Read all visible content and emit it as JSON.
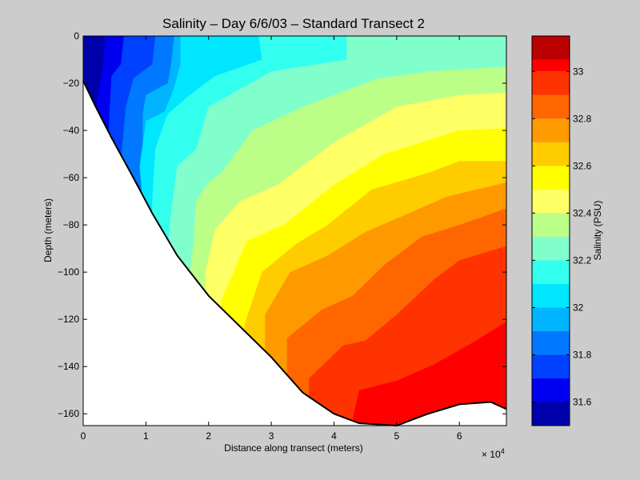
{
  "chart_data": {
    "type": "filled-contour",
    "title": "Salinity – Day 6/6/03 – Standard Transect 2",
    "xlabel": "Distance along transect (meters)",
    "ylabel": "Depth (meters)",
    "x_exponent_label": "× 10",
    "x_exponent": "4",
    "xlim": [
      0,
      67500
    ],
    "ylim": [
      -165,
      0
    ],
    "xticks": [
      {
        "value": 0,
        "label": "0"
      },
      {
        "value": 10000,
        "label": "1"
      },
      {
        "value": 20000,
        "label": "2"
      },
      {
        "value": 30000,
        "label": "3"
      },
      {
        "value": 40000,
        "label": "4"
      },
      {
        "value": 50000,
        "label": "5"
      },
      {
        "value": 60000,
        "label": "6"
      }
    ],
    "yticks": [
      {
        "value": 0,
        "label": "0"
      },
      {
        "value": -20,
        "label": "−20"
      },
      {
        "value": -40,
        "label": "−40"
      },
      {
        "value": -60,
        "label": "−60"
      },
      {
        "value": -80,
        "label": "−80"
      },
      {
        "value": -100,
        "label": "−100"
      },
      {
        "value": -120,
        "label": "−120"
      },
      {
        "value": -140,
        "label": "−140"
      },
      {
        "value": -160,
        "label": "−160"
      }
    ],
    "bottom_profile": [
      [
        0,
        -19
      ],
      [
        2000,
        -30
      ],
      [
        4500,
        -43
      ],
      [
        8000,
        -60
      ],
      [
        11000,
        -75
      ],
      [
        15000,
        -93
      ],
      [
        20000,
        -110
      ],
      [
        25000,
        -123
      ],
      [
        30000,
        -136
      ],
      [
        35000,
        -151
      ],
      [
        40000,
        -160
      ],
      [
        44000,
        -164
      ],
      [
        50000,
        -165
      ],
      [
        55000,
        -160
      ],
      [
        60000,
        -156
      ],
      [
        65000,
        -155
      ],
      [
        67500,
        -158
      ]
    ],
    "colorbar": {
      "label": "Salinity (PSU)",
      "range": [
        31.5,
        33.15
      ],
      "levels": [
        31.5,
        31.6,
        31.7,
        31.8,
        31.9,
        32.0,
        32.1,
        32.2,
        32.3,
        32.4,
        32.5,
        32.6,
        32.7,
        32.8,
        32.9,
        33.0,
        33.05,
        33.15
      ],
      "colors": [
        "#0000aa",
        "#0000f0",
        "#0040ff",
        "#0078ff",
        "#00b4ff",
        "#00e6ff",
        "#33ffee",
        "#80ffcc",
        "#bbff88",
        "#ffff66",
        "#ffff00",
        "#ffcc00",
        "#ff9900",
        "#ff6600",
        "#ff3300",
        "#ff0000",
        "#bb0000"
      ],
      "ticks": [
        {
          "value": 31.6,
          "label": "31.6"
        },
        {
          "value": 31.8,
          "label": "31.8"
        },
        {
          "value": 32.0,
          "label": "32"
        },
        {
          "value": 32.2,
          "label": "32.2"
        },
        {
          "value": 32.4,
          "label": "32.4"
        },
        {
          "value": 32.6,
          "label": "32.6"
        },
        {
          "value": 32.8,
          "label": "32.8"
        },
        {
          "value": 33.0,
          "label": "33"
        }
      ]
    },
    "contours": [
      {
        "x": [
          0,
          67500
        ],
        "y_at_surface": [
          0,
          0
        ],
        "boundary": [
          [
            1500,
            0
          ],
          [
            1800,
            -8
          ],
          [
            1000,
            -17
          ]
        ],
        "salinity_min": 31.5
      },
      {
        "boundary": [
          [
            3500,
            0
          ],
          [
            3200,
            -12
          ],
          [
            2000,
            -30
          ]
        ],
        "salinity_min": 31.6
      },
      {
        "boundary": [
          [
            6500,
            0
          ],
          [
            6000,
            -12
          ],
          [
            4500,
            -17
          ],
          [
            4000,
            -43
          ]
        ],
        "salinity_min": 31.7
      },
      {
        "boundary": [
          [
            11500,
            0
          ],
          [
            11000,
            -12
          ],
          [
            8000,
            -18
          ],
          [
            6800,
            -30
          ],
          [
            6000,
            -53
          ]
        ],
        "salinity_min": 31.8
      },
      {
        "boundary": [
          [
            14500,
            0
          ],
          [
            14000,
            -12
          ],
          [
            13500,
            -20
          ],
          [
            10000,
            -25
          ],
          [
            9500,
            -33
          ],
          [
            9500,
            -70
          ]
        ],
        "salinity_min": 31.9
      },
      {
        "boundary": [
          [
            15500,
            0
          ],
          [
            15500,
            -12
          ],
          [
            14500,
            -22
          ],
          [
            13000,
            -32
          ],
          [
            10000,
            -36
          ],
          [
            9000,
            -55
          ],
          [
            9500,
            -72
          ]
        ],
        "salinity_min": 32.0
      },
      {
        "boundary": [
          [
            28000,
            0
          ],
          [
            28500,
            -10
          ],
          [
            21000,
            -17
          ],
          [
            17000,
            -25
          ],
          [
            13500,
            -33
          ],
          [
            12500,
            -40
          ],
          [
            11500,
            -48
          ],
          [
            11000,
            -70
          ],
          [
            11000,
            -80
          ]
        ],
        "salinity_min": 32.1
      },
      {
        "boundary": [
          [
            42000,
            0
          ],
          [
            42000,
            -10
          ],
          [
            30000,
            -15
          ],
          [
            20000,
            -30
          ],
          [
            18000,
            -48
          ],
          [
            15000,
            -55
          ],
          [
            14000,
            -75
          ],
          [
            13500,
            -90
          ]
        ],
        "salinity_min": 32.2
      },
      {
        "boundary": [
          [
            67500,
            -13
          ],
          [
            55000,
            -15
          ],
          [
            47000,
            -18
          ],
          [
            35000,
            -30
          ],
          [
            27000,
            -40
          ],
          [
            22000,
            -58
          ],
          [
            20000,
            -62
          ],
          [
            18000,
            -70
          ],
          [
            17500,
            -90
          ],
          [
            17000,
            -100
          ]
        ],
        "salinity_min": 32.3
      },
      {
        "boundary": [
          [
            67500,
            -24
          ],
          [
            60000,
            -25
          ],
          [
            50000,
            -30
          ],
          [
            40000,
            -45
          ],
          [
            31000,
            -63
          ],
          [
            25000,
            -70
          ],
          [
            21000,
            -82
          ],
          [
            19500,
            -100
          ],
          [
            19500,
            -110
          ]
        ],
        "salinity_min": 32.4
      },
      {
        "boundary": [
          [
            67500,
            -39
          ],
          [
            60000,
            -40
          ],
          [
            48000,
            -50
          ],
          [
            40000,
            -63
          ],
          [
            32000,
            -80
          ],
          [
            26000,
            -87
          ],
          [
            24000,
            -100
          ],
          [
            22000,
            -112
          ]
        ],
        "salinity_min": 32.5
      },
      {
        "boundary": [
          [
            67500,
            -53
          ],
          [
            60000,
            -53
          ],
          [
            55000,
            -58
          ],
          [
            46000,
            -65
          ],
          [
            39000,
            -80
          ],
          [
            34000,
            -88
          ],
          [
            28500,
            -100
          ],
          [
            26000,
            -120
          ],
          [
            25500,
            -125
          ]
        ],
        "salinity_min": 32.6
      },
      {
        "boundary": [
          [
            67500,
            -62
          ],
          [
            58000,
            -68
          ],
          [
            52000,
            -75
          ],
          [
            45000,
            -83
          ],
          [
            39000,
            -93
          ],
          [
            33000,
            -100
          ],
          [
            29000,
            -118
          ],
          [
            29000,
            -131
          ]
        ],
        "salinity_min": 32.7
      },
      {
        "boundary": [
          [
            67500,
            -73
          ],
          [
            60000,
            -80
          ],
          [
            54000,
            -85
          ],
          [
            48000,
            -97
          ],
          [
            43000,
            -110
          ],
          [
            38000,
            -116
          ],
          [
            32500,
            -128
          ],
          [
            32500,
            -145
          ]
        ],
        "salinity_min": 32.8
      },
      {
        "boundary": [
          [
            67500,
            -89
          ],
          [
            60000,
            -95
          ],
          [
            56000,
            -103
          ],
          [
            50000,
            -118
          ],
          [
            45000,
            -129
          ],
          [
            41500,
            -131
          ],
          [
            36000,
            -145
          ],
          [
            36000,
            -153
          ]
        ],
        "salinity_min": 32.9
      },
      {
        "boundary": [
          [
            67500,
            -121
          ],
          [
            62000,
            -130
          ],
          [
            56000,
            -139
          ],
          [
            50000,
            -146
          ],
          [
            44000,
            -150
          ],
          [
            43000,
            -162
          ]
        ],
        "salinity_min": 33.0
      }
    ]
  }
}
